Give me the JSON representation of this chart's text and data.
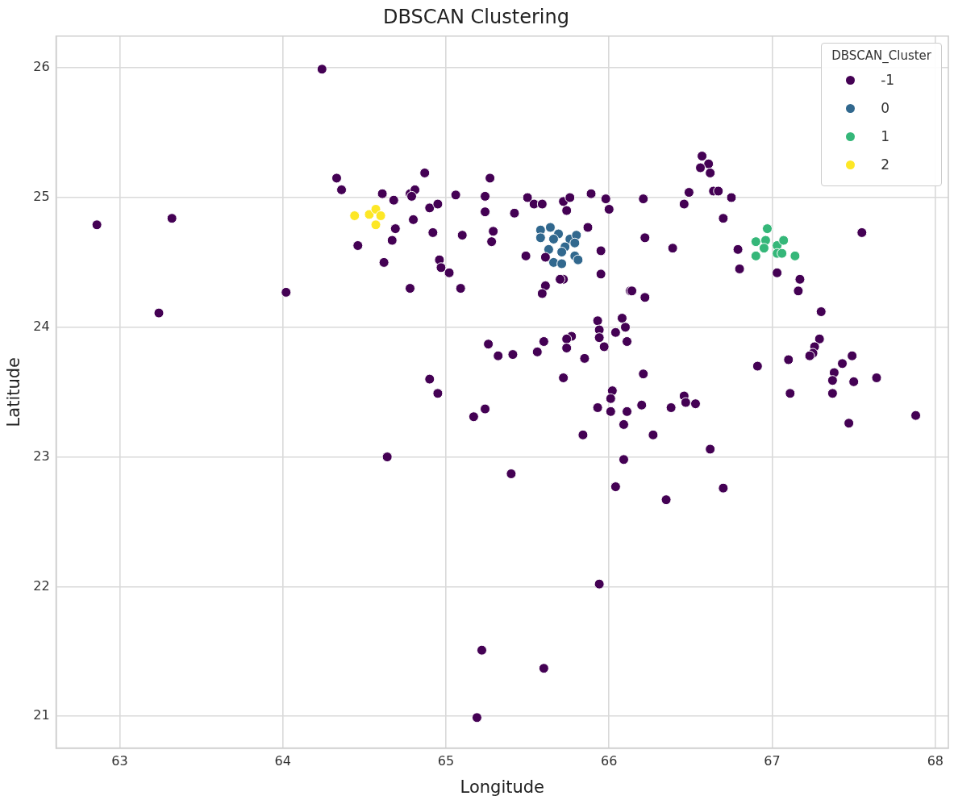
{
  "chart_data": {
    "type": "scatter",
    "title": "DBSCAN Clustering",
    "xlabel": "Longitude",
    "ylabel": "Latitude",
    "legend_title": "DBSCAN_Cluster",
    "legend": "top right",
    "grid": true,
    "marker": "circle",
    "xlim": [
      62.61,
      68.08
    ],
    "ylim": [
      20.755,
      26.245
    ],
    "xticks": [
      63,
      64,
      65,
      66,
      67,
      68
    ],
    "yticks": [
      21,
      22,
      23,
      24,
      25,
      26
    ],
    "series": [
      {
        "name": "-1",
        "color": "#440154",
        "x": [
          64.24,
          62.86,
          63.32,
          64.33,
          64.36,
          64.61,
          64.46,
          64.62,
          64.02,
          63.24,
          64.87,
          64.68,
          64.78,
          64.81,
          64.79,
          64.9,
          64.95,
          64.8,
          64.69,
          64.67,
          64.92,
          64.96,
          64.97,
          65.02,
          65.09,
          64.78,
          65.06,
          65.27,
          65.24,
          65.24,
          65.1,
          65.29,
          65.28,
          65.42,
          65.5,
          65.54,
          65.59,
          65.72,
          65.76,
          65.74,
          65.89,
          65.98,
          66.0,
          66.21,
          66.46,
          66.49,
          65.87,
          66.22,
          66.39,
          65.49,
          65.61,
          65.95,
          65.95,
          65.72,
          65.7,
          65.61,
          65.59,
          66.13,
          66.14,
          66.22,
          65.93,
          66.08,
          66.1,
          65.94,
          65.94,
          65.97,
          66.04,
          66.11,
          65.77,
          65.74,
          65.74,
          65.6,
          65.56,
          65.26,
          65.32,
          65.41,
          65.85,
          65.72,
          64.9,
          64.95,
          65.24,
          65.17,
          64.64,
          65.4,
          66.21,
          66.02,
          66.01,
          65.93,
          66.01,
          66.11,
          66.2,
          66.38,
          66.46,
          66.47,
          66.53,
          66.09,
          65.84,
          66.27,
          66.09,
          66.04,
          66.35,
          66.91,
          66.62,
          66.7,
          67.29,
          67.26,
          67.25,
          67.23,
          67.1,
          67.49,
          67.43,
          67.38,
          67.37,
          67.5,
          67.64,
          67.11,
          67.37,
          67.47,
          67.88,
          66.57,
          66.61,
          66.56,
          66.62,
          66.64,
          66.67,
          66.75,
          66.7,
          66.79,
          66.8,
          67.03,
          67.17,
          67.16,
          67.3,
          67.55,
          65.94,
          65.22,
          65.6,
          65.19
        ],
        "values": [
          25.99,
          24.79,
          24.84,
          25.15,
          25.06,
          25.03,
          24.63,
          24.5,
          24.27,
          24.11,
          25.19,
          24.98,
          25.03,
          25.06,
          25.01,
          24.92,
          24.95,
          24.83,
          24.76,
          24.67,
          24.73,
          24.52,
          24.46,
          24.42,
          24.3,
          24.3,
          25.02,
          25.15,
          25.01,
          24.89,
          24.71,
          24.74,
          24.66,
          24.88,
          25.0,
          24.95,
          24.95,
          24.97,
          25.0,
          24.9,
          25.03,
          24.99,
          24.91,
          24.99,
          24.95,
          25.04,
          24.77,
          24.69,
          24.61,
          24.55,
          24.54,
          24.59,
          24.41,
          24.37,
          24.37,
          24.32,
          24.26,
          24.28,
          24.28,
          24.23,
          24.05,
          24.07,
          24.0,
          23.98,
          23.92,
          23.85,
          23.96,
          23.89,
          23.93,
          23.91,
          23.84,
          23.89,
          23.81,
          23.87,
          23.78,
          23.79,
          23.76,
          23.61,
          23.6,
          23.49,
          23.37,
          23.31,
          23.0,
          22.87,
          23.64,
          23.51,
          23.45,
          23.38,
          23.35,
          23.35,
          23.4,
          23.38,
          23.47,
          23.42,
          23.41,
          23.25,
          23.17,
          23.17,
          22.98,
          22.77,
          22.67,
          23.7,
          23.06,
          22.76,
          23.91,
          23.85,
          23.8,
          23.78,
          23.75,
          23.78,
          23.72,
          23.65,
          23.59,
          23.58,
          23.61,
          23.49,
          23.49,
          23.26,
          23.32,
          25.32,
          25.26,
          25.23,
          25.19,
          25.05,
          25.05,
          25.0,
          24.84,
          24.6,
          24.45,
          24.42,
          24.37,
          24.28,
          24.12,
          24.73,
          22.02,
          21.51,
          21.37,
          20.99
        ]
      },
      {
        "name": "0",
        "color": "#31688e",
        "x": [
          65.58,
          65.64,
          65.58,
          65.69,
          65.66,
          65.76,
          65.8,
          65.79,
          65.73,
          65.63,
          65.71,
          65.79,
          65.81,
          65.66,
          65.71
        ],
        "values": [
          24.75,
          24.77,
          24.69,
          24.72,
          24.68,
          24.68,
          24.71,
          24.65,
          24.62,
          24.6,
          24.58,
          24.55,
          24.52,
          24.5,
          24.49
        ]
      },
      {
        "name": "1",
        "color": "#35b779",
        "x": [
          66.97,
          66.9,
          66.96,
          66.95,
          66.9,
          67.03,
          67.07,
          67.03,
          67.06,
          67.14
        ],
        "values": [
          24.76,
          24.66,
          24.67,
          24.61,
          24.55,
          24.63,
          24.67,
          24.57,
          24.57,
          24.55
        ]
      },
      {
        "name": "2",
        "color": "#fde725",
        "x": [
          64.44,
          64.53,
          64.57,
          64.6,
          64.57
        ],
        "values": [
          24.86,
          24.87,
          24.91,
          24.86,
          24.79
        ]
      }
    ]
  }
}
